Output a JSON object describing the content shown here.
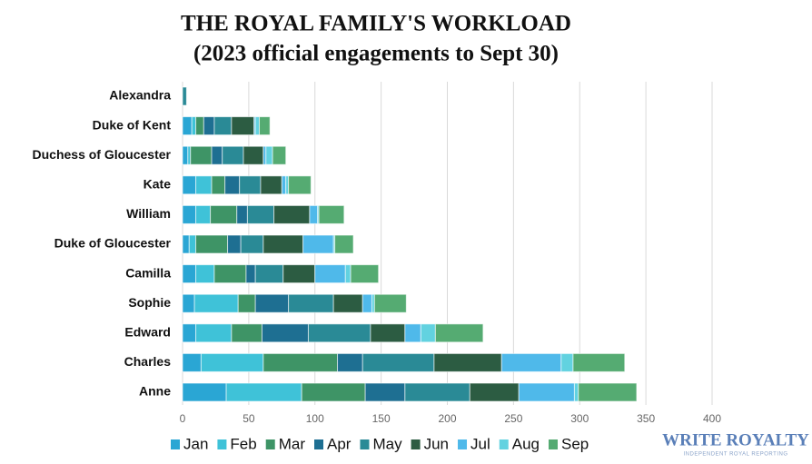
{
  "chart_data": {
    "type": "stacked-barh",
    "title": "THE ROYAL FAMILY'S WORKLOAD",
    "subtitle": "(2023 official engagements to Sept 30)",
    "categories": [
      "Alexandra",
      "Duke of Kent",
      "Duchess of Gloucester",
      "Kate",
      "William",
      "Duke of Gloucester",
      "Camilla",
      "Sophie",
      "Edward",
      "Charles",
      "Anne"
    ],
    "series": [
      {
        "name": "Jan",
        "color": "#2aa6d4",
        "values": [
          0,
          7,
          4,
          10,
          10,
          5,
          10,
          9,
          10,
          14,
          33
        ]
      },
      {
        "name": "Feb",
        "color": "#3fc2d8",
        "values": [
          0,
          3,
          2,
          12,
          11,
          5,
          14,
          33,
          27,
          47,
          57
        ]
      },
      {
        "name": "Mar",
        "color": "#3e9466",
        "values": [
          0,
          6,
          16,
          10,
          20,
          24,
          24,
          13,
          23,
          56,
          48
        ]
      },
      {
        "name": "Apr",
        "color": "#1e6f92",
        "values": [
          0,
          8,
          8,
          11,
          8,
          10,
          7,
          25,
          35,
          19,
          30
        ]
      },
      {
        "name": "May",
        "color": "#2a8a96",
        "values": [
          3,
          13,
          16,
          16,
          20,
          17,
          21,
          34,
          47,
          54,
          49
        ]
      },
      {
        "name": "Jun",
        "color": "#2c5c42",
        "values": [
          0,
          17,
          15,
          16,
          27,
          30,
          24,
          22,
          26,
          51,
          37
        ]
      },
      {
        "name": "Jul",
        "color": "#4fb9ea",
        "values": [
          0,
          1,
          2,
          3,
          6,
          23,
          23,
          7,
          12,
          45,
          42
        ]
      },
      {
        "name": "Aug",
        "color": "#62d2e0",
        "values": [
          0,
          3,
          5,
          2,
          1,
          1,
          4,
          2,
          11,
          9,
          3
        ]
      },
      {
        "name": "Sep",
        "color": "#55ab72",
        "values": [
          0,
          8,
          10,
          17,
          19,
          14,
          21,
          24,
          36,
          39,
          44
        ]
      }
    ],
    "xlim": [
      0,
      400
    ],
    "xticks": [
      0,
      50,
      100,
      150,
      200,
      250,
      300,
      350,
      400
    ],
    "grid": true,
    "legend": "bottom"
  },
  "logo": {
    "name": "WRITE ROYALTY",
    "tagline": "INDEPENDENT ROYAL REPORTING"
  }
}
